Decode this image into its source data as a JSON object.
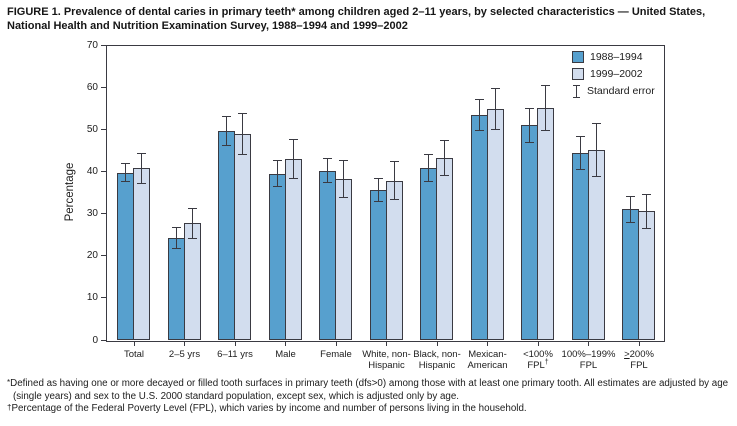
{
  "title": "FIGURE 1. Prevalence of dental caries in primary teeth* among children aged 2–11 years, by selected characteristics — United States, National Health and Nutrition Examination Survey, 1988–1994 and 1999–2002",
  "chart_data": {
    "type": "bar",
    "title": "FIGURE 1. Prevalence of dental caries in primary teeth among children aged 2–11 years, by selected characteristics — United States, National Health and Nutrition Examination Survey, 1988–1994 and 1999–2002",
    "xlabel": "",
    "ylabel": "Percentage",
    "ylim": [
      0,
      70
    ],
    "yticks": [
      0,
      10,
      20,
      30,
      40,
      50,
      60,
      70
    ],
    "grid": false,
    "legend_position": "top-right inside plot",
    "error_bars": true,
    "error_legend_label": "Standard error",
    "categories": [
      "Total",
      "2–5 yrs",
      "6–11 yrs",
      "Male",
      "Female",
      "White, non-\nHispanic",
      "Black, non-\nHispanic",
      "Mexican-\nAmerican",
      "<100%\nFPL†",
      "100%–199%\nFPL",
      "≥200%\nFPL"
    ],
    "series": [
      {
        "name": "1988–1994",
        "color": "#57a0ce",
        "values": [
          39.7,
          24.1,
          49.6,
          39.4,
          40.2,
          35.6,
          40.8,
          53.4,
          50.9,
          44.4,
          31.0
        ],
        "std_errors": [
          2.2,
          2.6,
          3.5,
          3.2,
          3.0,
          2.9,
          3.3,
          3.9,
          4.1,
          4.0,
          3.2
        ]
      },
      {
        "name": "1999–2002",
        "color": "#d2ddee",
        "values": [
          40.7,
          27.7,
          48.9,
          42.9,
          38.1,
          37.8,
          43.2,
          54.8,
          55.0,
          45.1,
          30.5
        ],
        "std_errors": [
          3.7,
          3.7,
          5.0,
          4.8,
          4.5,
          4.6,
          4.2,
          5.0,
          5.5,
          6.5,
          4.1
        ]
      }
    ]
  },
  "footnotes": [
    {
      "marker": "*",
      "text": "Defined as having one or more decayed or filled tooth surfaces in primary teeth (dfs>0) among those with at least one primary tooth. All estimates are adjusted by age (single years) and sex to the U.S. 2000 standard population, except sex, which is adjusted only by age."
    },
    {
      "marker": "†",
      "text": "Percentage of the Federal Poverty Level (FPL), which varies by income and number of persons living in the household."
    }
  ]
}
